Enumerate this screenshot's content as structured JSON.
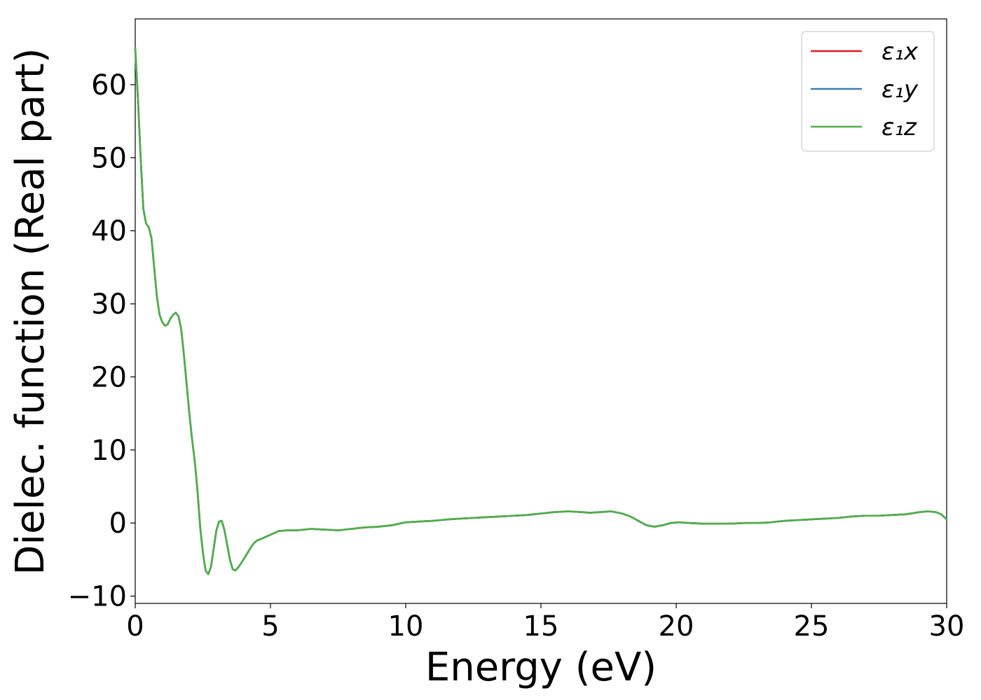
{
  "chart_data": {
    "type": "line",
    "xlabel": "Energy (eV)",
    "ylabel": "Dielec. function (Real part)",
    "xlim": [
      0,
      30
    ],
    "ylim": [
      -11,
      69
    ],
    "xticks": [
      0,
      5,
      10,
      15,
      20,
      25,
      30
    ],
    "xtick_labels": [
      "0",
      "5",
      "10",
      "15",
      "20",
      "25",
      "30"
    ],
    "yticks": [
      -10,
      0,
      10,
      20,
      30,
      40,
      50,
      60
    ],
    "ytick_labels": [
      "−10",
      "0",
      "10",
      "20",
      "30",
      "40",
      "50",
      "60"
    ],
    "grid": false,
    "legend_position": "top-right",
    "x": [
      0,
      0.1,
      0.2,
      0.3,
      0.4,
      0.5,
      0.6,
      0.7,
      0.8,
      0.9,
      1.0,
      1.1,
      1.2,
      1.3,
      1.4,
      1.5,
      1.6,
      1.7,
      1.8,
      1.9,
      2.0,
      2.1,
      2.2,
      2.3,
      2.4,
      2.5,
      2.6,
      2.7,
      2.8,
      2.9,
      3.0,
      3.1,
      3.2,
      3.3,
      3.4,
      3.5,
      3.6,
      3.7,
      3.8,
      3.9,
      4.0,
      4.1,
      4.2,
      4.3,
      4.4,
      4.5,
      4.7,
      5.0,
      5.3,
      5.6,
      6.0,
      6.5,
      7.0,
      7.5,
      8.0,
      8.5,
      9.0,
      9.5,
      10.0,
      10.5,
      11.0,
      11.3,
      11.6,
      12.0,
      12.5,
      13.0,
      13.5,
      14.0,
      14.5,
      15.0,
      15.5,
      16.0,
      16.5,
      16.8,
      17.2,
      17.6,
      18.0,
      18.3,
      18.6,
      18.9,
      19.2,
      19.5,
      19.8,
      20.1,
      20.5,
      21.0,
      21.5,
      22.0,
      22.5,
      23.0,
      23.5,
      24.0,
      24.5,
      25.0,
      25.5,
      26.0,
      26.5,
      27.0,
      27.5,
      28.0,
      28.5,
      29.0,
      29.3,
      29.6,
      29.8,
      30.0
    ],
    "series": [
      {
        "name": "ε₁x",
        "color": "#e41a1c",
        "values": [
          65,
          58,
          50,
          43,
          41,
          40.5,
          39,
          35,
          31,
          28.5,
          27.5,
          27,
          27.2,
          28,
          28.5,
          28.8,
          28.3,
          26.5,
          23,
          19,
          15,
          11.5,
          8.5,
          4.5,
          -0.5,
          -4,
          -6.5,
          -7,
          -6,
          -3.5,
          -1,
          0.2,
          0.3,
          -1,
          -3,
          -5,
          -6.3,
          -6.5,
          -6.1,
          -5.6,
          -5,
          -4.4,
          -3.8,
          -3.2,
          -2.7,
          -2.4,
          -2.1,
          -1.6,
          -1.1,
          -1.0,
          -1.0,
          -0.8,
          -0.9,
          -1.0,
          -0.8,
          -0.6,
          -0.5,
          -0.3,
          0.1,
          0.2,
          0.3,
          0.4,
          0.5,
          0.6,
          0.7,
          0.8,
          0.9,
          1.0,
          1.1,
          1.3,
          1.5,
          1.6,
          1.5,
          1.4,
          1.5,
          1.6,
          1.3,
          0.9,
          0.3,
          -0.3,
          -0.5,
          -0.3,
          0.0,
          0.1,
          0.0,
          -0.1,
          -0.1,
          -0.1,
          0.0,
          0.0,
          0.1,
          0.3,
          0.4,
          0.5,
          0.6,
          0.7,
          0.9,
          1.0,
          1.0,
          1.1,
          1.2,
          1.5,
          1.6,
          1.5,
          1.2,
          0.5
        ]
      },
      {
        "name": "ε₁y",
        "color": "#377eb8",
        "values": [
          65,
          58,
          50,
          43,
          41,
          40.5,
          39,
          35,
          31,
          28.5,
          27.5,
          27,
          27.2,
          28,
          28.5,
          28.8,
          28.3,
          26.5,
          23,
          19,
          15,
          11.5,
          8.5,
          4.5,
          -0.5,
          -4,
          -6.5,
          -7,
          -6,
          -3.5,
          -1,
          0.2,
          0.3,
          -1,
          -3,
          -5,
          -6.3,
          -6.5,
          -6.1,
          -5.6,
          -5,
          -4.4,
          -3.8,
          -3.2,
          -2.7,
          -2.4,
          -2.1,
          -1.6,
          -1.1,
          -1.0,
          -1.0,
          -0.8,
          -0.9,
          -1.0,
          -0.8,
          -0.6,
          -0.5,
          -0.3,
          0.1,
          0.2,
          0.3,
          0.4,
          0.5,
          0.6,
          0.7,
          0.8,
          0.9,
          1.0,
          1.1,
          1.3,
          1.5,
          1.6,
          1.5,
          1.4,
          1.5,
          1.6,
          1.3,
          0.9,
          0.3,
          -0.3,
          -0.5,
          -0.3,
          0.0,
          0.1,
          0.0,
          -0.1,
          -0.1,
          -0.1,
          0.0,
          0.0,
          0.1,
          0.3,
          0.4,
          0.5,
          0.6,
          0.7,
          0.9,
          1.0,
          1.0,
          1.1,
          1.2,
          1.5,
          1.6,
          1.5,
          1.2,
          0.5
        ]
      },
      {
        "name": "ε₁z",
        "color": "#4daf4a",
        "values": [
          65,
          58,
          50,
          43,
          41,
          40.5,
          39,
          35,
          31,
          28.5,
          27.5,
          27,
          27.2,
          28,
          28.5,
          28.8,
          28.3,
          26.5,
          23,
          19,
          15,
          11.5,
          8.5,
          4.5,
          -0.5,
          -4,
          -6.5,
          -7,
          -6,
          -3.5,
          -1,
          0.2,
          0.3,
          -1,
          -3,
          -5,
          -6.3,
          -6.5,
          -6.1,
          -5.6,
          -5,
          -4.4,
          -3.8,
          -3.2,
          -2.7,
          -2.4,
          -2.1,
          -1.6,
          -1.1,
          -1.0,
          -1.0,
          -0.8,
          -0.9,
          -1.0,
          -0.8,
          -0.6,
          -0.5,
          -0.3,
          0.1,
          0.2,
          0.3,
          0.4,
          0.5,
          0.6,
          0.7,
          0.8,
          0.9,
          1.0,
          1.1,
          1.3,
          1.5,
          1.6,
          1.5,
          1.4,
          1.5,
          1.6,
          1.3,
          0.9,
          0.3,
          -0.3,
          -0.5,
          -0.3,
          0.0,
          0.1,
          0.0,
          -0.1,
          -0.1,
          -0.1,
          0.0,
          0.0,
          0.1,
          0.3,
          0.4,
          0.5,
          0.6,
          0.7,
          0.9,
          1.0,
          1.0,
          1.1,
          1.2,
          1.5,
          1.6,
          1.5,
          1.2,
          0.5
        ]
      }
    ]
  }
}
